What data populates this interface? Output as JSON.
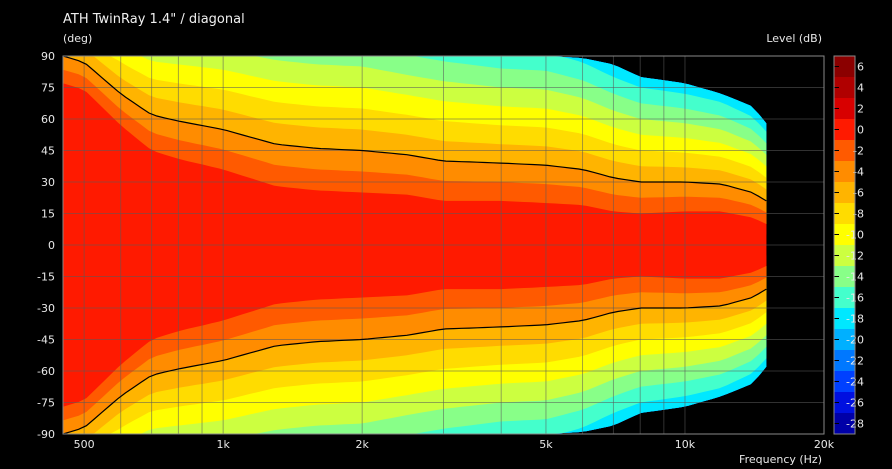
{
  "chart_data": {
    "type": "heatmap",
    "title": "ATH TwinRay 1.4\" / diagonal",
    "ylabel": "(deg)",
    "xlabel": "Frequency  (Hz)",
    "colorbar_label": "Level  (dB)",
    "x_scale": "log",
    "xlim": [
      450,
      20000
    ],
    "ylim": [
      -90,
      90
    ],
    "x_ticks": [
      500,
      1000,
      2000,
      5000,
      10000,
      20000
    ],
    "x_tick_labels": [
      "500",
      "1k",
      "2k",
      "5k",
      "10k",
      "20k"
    ],
    "y_ticks": [
      90,
      75,
      60,
      45,
      30,
      15,
      0,
      -15,
      -30,
      -45,
      -60,
      -75,
      -90
    ],
    "y_tick_labels": [
      "90",
      "75",
      "60",
      "45",
      "30",
      "15",
      "0",
      "-15",
      "-30",
      "-45",
      "-60",
      "-75",
      "-90"
    ],
    "color_levels": [
      6,
      4,
      2,
      0,
      -2,
      -4,
      -6,
      -8,
      -10,
      -12,
      -14,
      -16,
      -18,
      -20,
      -22,
      -24,
      -26,
      -28
    ],
    "color_level_labels": [
      "6",
      "4",
      "2",
      "0",
      "-2",
      "-4",
      "-6",
      "-8",
      "-10",
      "-12",
      "-14",
      "-16",
      "-18",
      "-20",
      "-22",
      "-24",
      "-26",
      "-28"
    ],
    "colors": [
      "#8b0000",
      "#b00000",
      "#d80000",
      "#ff1a00",
      "#ff5a00",
      "#ff8c00",
      "#ffb400",
      "#ffdc00",
      "#ffff00",
      "#ccff40",
      "#88ff88",
      "#44ffcc",
      "#00e8ff",
      "#00b0ff",
      "#0078ff",
      "#0040ff",
      "#0010e0",
      "#0000a8"
    ],
    "background": "#000000",
    "data_extent_hz": 15000,
    "contour_iso_line_db": -6,
    "frequencies_hz": [
      450,
      500,
      600,
      700,
      800,
      1000,
      1300,
      1600,
      2000,
      2500,
      3000,
      4000,
      5000,
      6000,
      7000,
      8000,
      10000,
      12000,
      14000,
      15000
    ],
    "curve_minus6db_deg": [
      90,
      87,
      72,
      62,
      59,
      55,
      48,
      46,
      45,
      43,
      40,
      39,
      38,
      36,
      32,
      30,
      30,
      29,
      25,
      21
    ],
    "outer_edge_deg": [
      90,
      90,
      90,
      90,
      90,
      90,
      90,
      90,
      90,
      90,
      90,
      90,
      90,
      89,
      86,
      80,
      77,
      72,
      66,
      58
    ],
    "level_spacing_deg": [
      6.5,
      6.5,
      7.5,
      8.5,
      9.0,
      9.5,
      10.0,
      10.0,
      10.0,
      9.5,
      9.5,
      9.0,
      9.0,
      8.5,
      8.0,
      7.5,
      7.0,
      6.5,
      6.0,
      5.5
    ]
  }
}
